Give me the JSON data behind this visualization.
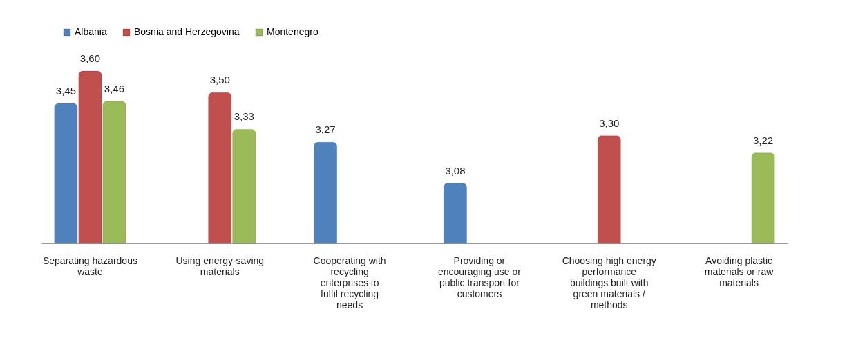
{
  "chart_data": {
    "type": "bar",
    "categories": [
      "Separating hazardous waste",
      "Using energy-saving materials",
      "Cooperating with recycling enterprises to fulfil recycling needs",
      "Providing or encouraging use or public transport for customers",
      "Choosing high energy performance buildings built with green materials / methods",
      "Avoiding plastic materials or raw materials"
    ],
    "series": [
      {
        "name": "Albania",
        "color": "#4f81bd",
        "values": [
          3.45,
          null,
          3.27,
          3.08,
          null,
          null
        ],
        "value_labels": [
          "3,45",
          null,
          "3,27",
          "3,08",
          null,
          null
        ]
      },
      {
        "name": "Bosnia and Herzegovina",
        "color": "#c0504d",
        "values": [
          3.6,
          3.5,
          null,
          null,
          3.3,
          null
        ],
        "value_labels": [
          "3,60",
          "3,50",
          null,
          null,
          "3,30",
          null
        ]
      },
      {
        "name": "Montenegro",
        "color": "#9bbb59",
        "values": [
          3.46,
          3.33,
          null,
          null,
          null,
          3.22
        ],
        "value_labels": [
          "3,46",
          "3,33",
          null,
          null,
          null,
          "3,22"
        ]
      }
    ],
    "ylim": [
      2.8,
      3.6
    ],
    "legend": "top",
    "grid": false
  }
}
